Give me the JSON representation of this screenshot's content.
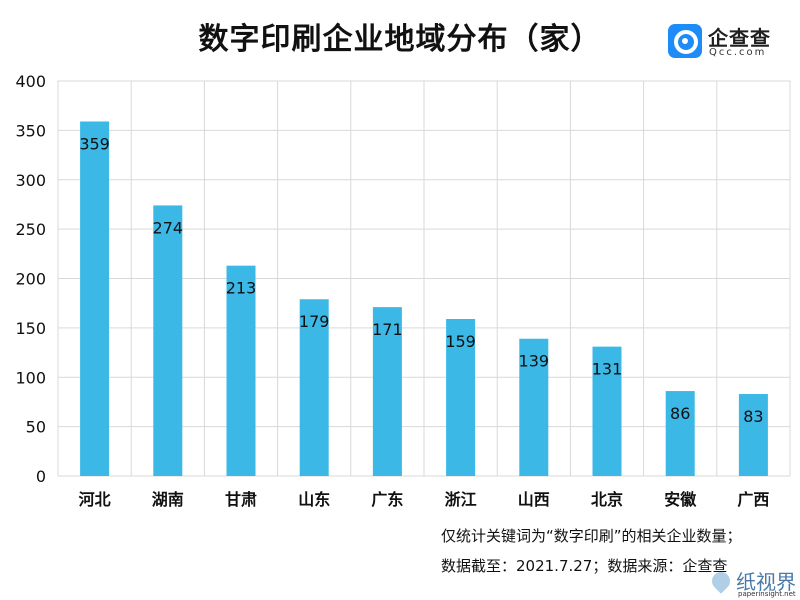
{
  "title": "数字印刷企业地域分布（家）",
  "logo": {
    "name": "企查查",
    "domain": "Qcc.com"
  },
  "notes": {
    "line1": "仅统计关键词为“数字印刷”的相关企业数量；",
    "line2": "数据截至：2021.7.27；数据来源：企查查"
  },
  "watermark": {
    "text": "纸视界",
    "url": "paperinsight.net"
  },
  "colors": {
    "bar": "#3bb8e6",
    "grid": "#d9d9d9",
    "logo": "#1d8cf8"
  },
  "chart_data": {
    "type": "bar",
    "categories": [
      "河北",
      "湖南",
      "甘肃",
      "山东",
      "广东",
      "浙江",
      "山西",
      "北京",
      "安徽",
      "广西"
    ],
    "values": [
      359,
      274,
      213,
      179,
      171,
      159,
      139,
      131,
      86,
      83
    ],
    "title": "数字印刷企业地域分布（家）",
    "xlabel": "",
    "ylabel": "",
    "ylim": [
      0,
      400
    ],
    "yticks": [
      0,
      50,
      100,
      150,
      200,
      250,
      300,
      350,
      400
    ],
    "grid": true,
    "legend": "none"
  }
}
